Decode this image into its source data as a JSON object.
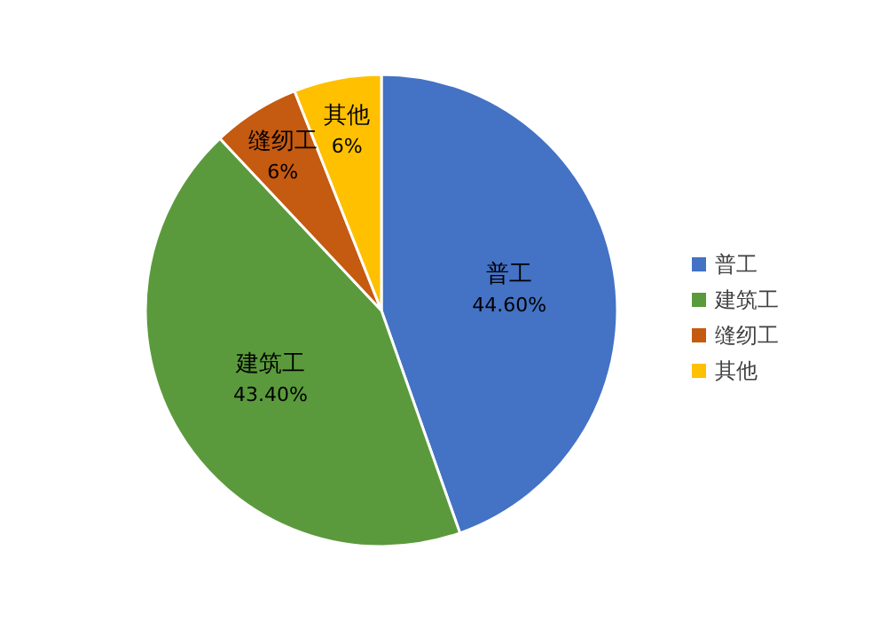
{
  "chart_data": {
    "type": "pie",
    "categories": [
      "普工",
      "建筑工",
      "缝纫工",
      "其他"
    ],
    "values": [
      44.6,
      43.4,
      6,
      6
    ],
    "value_labels": [
      "44.60%",
      "43.40%",
      "6%",
      "6%"
    ],
    "colors": [
      "#4472c4",
      "#5b9a3c",
      "#c55a11",
      "#ffc000"
    ],
    "legend": "right"
  }
}
